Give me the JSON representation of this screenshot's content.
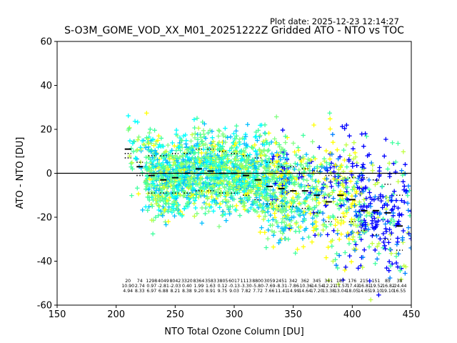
{
  "header": {
    "plot_date": "Plot date: 2025-12-23 12:14:27"
  },
  "chart_data": {
    "type": "scatter",
    "title": "S-O3M_GOME_VOD_XX_M01_20251222Z Gridded ATO - NTO vs TOC",
    "xlabel": "NTO Total Ozone Column [DU]",
    "ylabel": "ATO - NTO [DU]",
    "xlim": [
      150,
      450
    ],
    "ylim": [
      -60,
      60
    ],
    "xticks": [
      150,
      200,
      250,
      300,
      350,
      400,
      450
    ],
    "yticks": [
      -60,
      -40,
      -20,
      0,
      20,
      40,
      60
    ],
    "reference_line_y": 0,
    "marker": "+",
    "point_colors": [
      "#0000ff",
      "#0080ff",
      "#00bfff",
      "#00ffff",
      "#40ff9f",
      "#80ff80",
      "#c0ff40",
      "#ffff00"
    ],
    "bin_x": [
      210,
      220,
      230,
      240,
      250,
      260,
      270,
      280,
      290,
      300,
      310,
      320,
      330,
      340,
      350,
      360,
      370,
      380,
      390,
      400,
      410,
      420,
      430,
      440
    ],
    "bin_median": [
      11,
      3,
      -1,
      -3,
      -2,
      0,
      2,
      1,
      0,
      0,
      -1,
      -3,
      -6,
      -7,
      -8,
      -8,
      -10,
      -13,
      -10,
      -12,
      -17,
      -17,
      -18,
      -24
    ],
    "bin_upper": [
      9,
      5,
      8,
      8,
      9,
      9,
      11,
      11,
      10,
      9,
      8,
      7,
      5,
      3,
      3,
      2,
      1,
      -1,
      0,
      -2,
      -2,
      -3,
      -5,
      -10
    ],
    "bin_lower": [
      7,
      -1,
      -9,
      -9,
      -9,
      -9,
      -8,
      -8,
      -9,
      -9,
      -10,
      -12,
      -14,
      -15,
      -15,
      -16,
      -18,
      -22,
      -20,
      -22,
      -26,
      -28,
      -30,
      -35
    ],
    "bin_counts": [
      "20",
      "74",
      "1298",
      "4049",
      "8042",
      "3320",
      "8364",
      "3583",
      "3805",
      "6017",
      "1113",
      "8800",
      "3059",
      "2451",
      "342",
      "362",
      "345",
      "341",
      "187",
      "176",
      "215",
      "151",
      "85",
      "38"
    ],
    "bin_mean_labels": [
      "10.90",
      "2.74",
      "0.97",
      "-2.81",
      "-2.03",
      "0.40",
      "1.99",
      "1.63",
      "0.12",
      "-0.13",
      "-3.30",
      "-5.80",
      "-7.69",
      "-8.31",
      "-7.86",
      "-10.36",
      "-14.54",
      "-12.21",
      "-11.57",
      "-17.43",
      "-16.81",
      "-19.52",
      "-16.82",
      "-24.44"
    ],
    "bin_sd_labels": [
      "4.94",
      "8.33",
      "6.97",
      "6.88",
      "8.21",
      "8.38",
      "9.20",
      "8.91",
      "9.75",
      "9.03",
      "7.82",
      "7.72",
      "7.66",
      "11.41",
      "14.99",
      "14.64",
      "17.20",
      "13.38",
      "13.04",
      "18.05",
      "14.65",
      "19.10",
      "19.10",
      "16.55"
    ]
  }
}
